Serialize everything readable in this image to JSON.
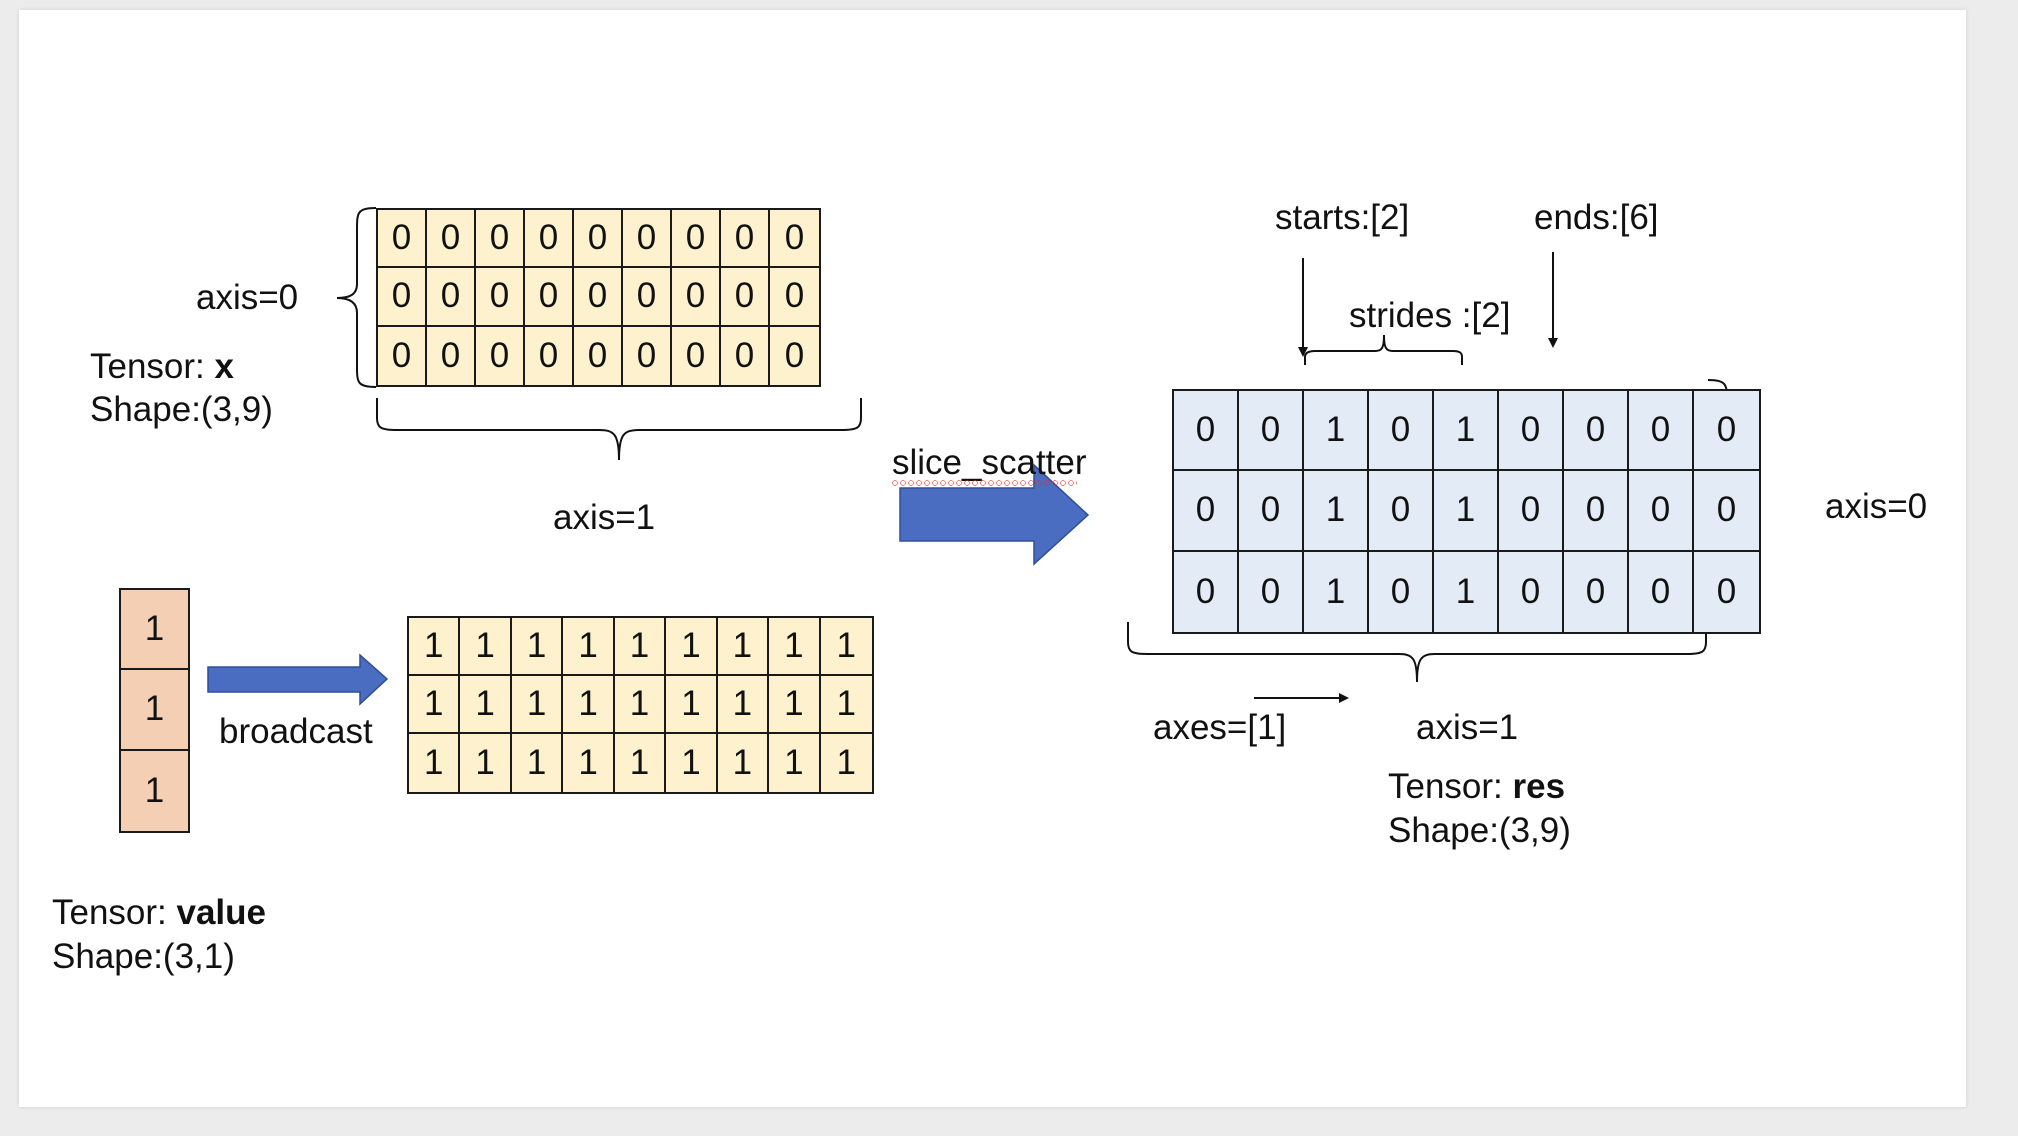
{
  "tensor_x": {
    "prefix": "Tensor: ",
    "name": "x",
    "shape": "Shape:(3,9)",
    "rows": [
      [
        "0",
        "0",
        "0",
        "0",
        "0",
        "0",
        "0",
        "0",
        "0"
      ],
      [
        "0",
        "0",
        "0",
        "0",
        "0",
        "0",
        "0",
        "0",
        "0"
      ],
      [
        "0",
        "0",
        "0",
        "0",
        "0",
        "0",
        "0",
        "0",
        "0"
      ]
    ],
    "axis0_label": "axis=0",
    "axis1_label": "axis=1",
    "fill_color": "#fdf2cd"
  },
  "tensor_value": {
    "prefix": "Tensor: ",
    "name": "value",
    "shape": "Shape:(3,1)",
    "rows": [
      [
        "1"
      ],
      [
        "1"
      ],
      [
        "1"
      ]
    ],
    "fill_color": "#f5cfb3"
  },
  "broadcast": {
    "label": "broadcast",
    "rows": [
      [
        "1",
        "1",
        "1",
        "1",
        "1",
        "1",
        "1",
        "1",
        "1"
      ],
      [
        "1",
        "1",
        "1",
        "1",
        "1",
        "1",
        "1",
        "1",
        "1"
      ],
      [
        "1",
        "1",
        "1",
        "1",
        "1",
        "1",
        "1",
        "1",
        "1"
      ]
    ],
    "arrow_color": "#4a6cc1"
  },
  "operation": {
    "label": "slice_scatter",
    "arrow_color": "#4a6cc1"
  },
  "tensor_res": {
    "prefix": "Tensor: ",
    "name": "res",
    "shape": "Shape:(3,9)",
    "rows": [
      [
        "0",
        "0",
        "1",
        "0",
        "1",
        "0",
        "0",
        "0",
        "0"
      ],
      [
        "0",
        "0",
        "1",
        "0",
        "1",
        "0",
        "0",
        "0",
        "0"
      ],
      [
        "0",
        "0",
        "1",
        "0",
        "1",
        "0",
        "0",
        "0",
        "0"
      ]
    ],
    "axis0_label": "axis=0",
    "axis1_label": "axis=1",
    "fill_color": "#e3ecf6"
  },
  "params": {
    "starts": "starts:[2]",
    "ends": "ends:[6]",
    "strides": "strides :[2]",
    "axes": "axes=[1]"
  }
}
